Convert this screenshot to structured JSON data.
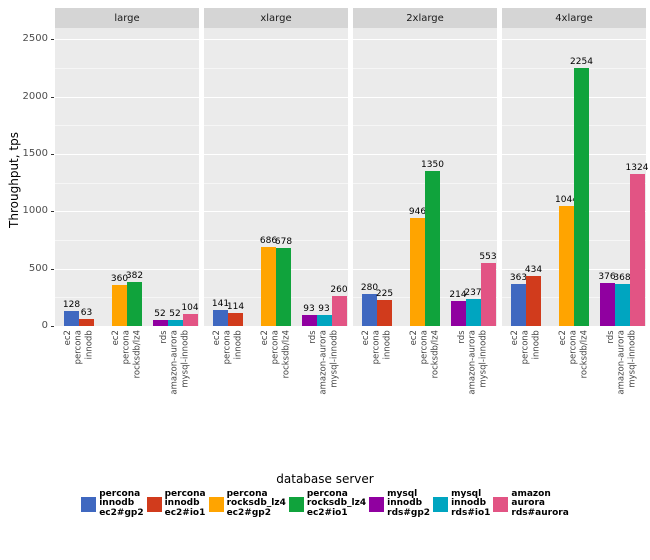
{
  "chart_data": {
    "type": "bar",
    "title": "",
    "ylabel": "Throughput, tps",
    "legend_title": "database server",
    "ylim": [
      0,
      2600
    ],
    "yticks": [
      0,
      500,
      1000,
      1500,
      2000,
      2500
    ],
    "facets": [
      "large",
      "xlarge",
      "2xlarge",
      "4xlarge"
    ],
    "categories": [
      "ec2\npercona\ninnodb",
      "ec2\npercona\nrocksdb/lz4",
      "rds\namazon-aurora\nmysql-innodb"
    ],
    "grid": "on",
    "legend_position": "bottom",
    "panel_bg": "#ebebeb",
    "strip_bg": "#d5d5d5",
    "series": [
      {
        "name": "percona\ninnodb\nec2#gp2",
        "color": "#3f68c0",
        "group": 0,
        "values": [
          128,
          141,
          280,
          363
        ]
      },
      {
        "name": "percona\ninnodb\nec2#io1",
        "color": "#d13b1c",
        "group": 0,
        "values": [
          63,
          114,
          225,
          434
        ]
      },
      {
        "name": "percona\nrocksdb_lz4\nec2#gp2",
        "color": "#ffa400",
        "group": 1,
        "values": [
          360,
          686,
          946,
          1044
        ]
      },
      {
        "name": "percona\nrocksdb_lz4\nec2#io1",
        "color": "#10a33c",
        "group": 1,
        "values": [
          382,
          678,
          1350,
          2254
        ]
      },
      {
        "name": "mysql\ninnodb\nrds#gp2",
        "color": "#9000a0",
        "group": 2,
        "values": [
          52,
          93,
          214,
          376
        ]
      },
      {
        "name": "mysql\ninnodb\nrds#io1",
        "color": "#00a5c0",
        "group": 2,
        "values": [
          52,
          93,
          237,
          368
        ]
      },
      {
        "name": "amazon\naurora\nrds#aurora",
        "color": "#e25484",
        "group": 2,
        "values": [
          104,
          260,
          553,
          1324
        ]
      }
    ]
  }
}
